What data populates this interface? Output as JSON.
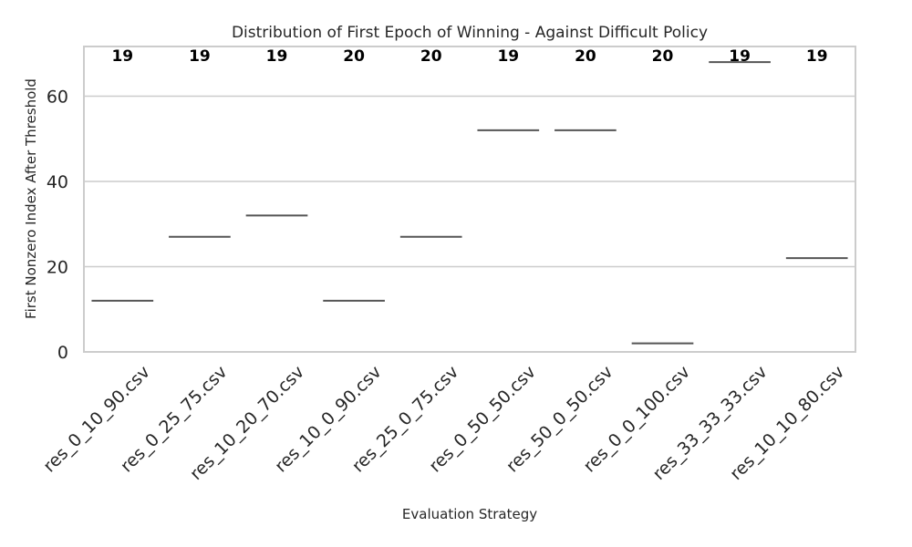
{
  "chart_data": {
    "type": "box",
    "title": "Distribution of First Epoch of Winning - Against Difficult Policy",
    "xlabel": "Evaluation Strategy",
    "ylabel": "First Nonzero Index After Threshold",
    "ylim": [
      0,
      72
    ],
    "yticks": [
      0,
      20,
      40,
      60
    ],
    "grid": "horizontal",
    "categories": [
      "res_0_10_90.csv",
      "res_0_25_75.csv",
      "res_10_20_70.csv",
      "res_10_0_90.csv",
      "res_25_0_75.csv",
      "res_0_50_50.csv",
      "res_50_0_50.csv",
      "res_0_0_100.csv",
      "res_33_33_33.csv",
      "res_10_10_80.csv"
    ],
    "values": [
      12,
      27,
      32,
      12,
      27,
      52,
      52,
      2,
      68,
      22
    ],
    "counts": [
      "19",
      "19",
      "19",
      "20",
      "20",
      "19",
      "20",
      "20",
      "19",
      "19"
    ]
  },
  "colors": {
    "frame": "#cccccc",
    "grid": "#cccccc",
    "median": "#555555",
    "text": "#262626"
  }
}
